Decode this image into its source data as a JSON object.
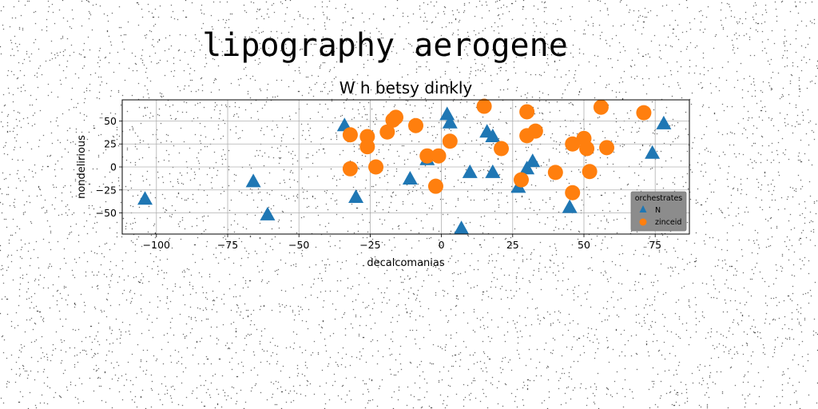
{
  "chart_data": {
    "type": "scatter",
    "suptitle": "lipography aerogene",
    "title": "W h betsy dinkly",
    "xlabel": "decalcomanias",
    "ylabel": "nondelirious",
    "xlim": [
      -112,
      87
    ],
    "ylim": [
      -73,
      73
    ],
    "xticks": [
      -100,
      -75,
      -50,
      -25,
      0,
      25,
      50,
      75
    ],
    "xtick_labels": [
      "−100",
      "−75",
      "−50",
      "−25",
      "0",
      "25",
      "50",
      "75"
    ],
    "yticks": [
      50,
      25,
      0,
      -25,
      -50
    ],
    "ytick_labels": [
      "50",
      "25",
      "0",
      "−25",
      "−50"
    ],
    "grid": true,
    "legend": {
      "title": "orchestrates",
      "placement": "lower-right"
    },
    "series": [
      {
        "name": "N",
        "marker": "triangle",
        "color": "#1f77b4",
        "points": [
          [
            -104,
            -35
          ],
          [
            -66,
            -16
          ],
          [
            -61,
            -52
          ],
          [
            -34,
            45
          ],
          [
            -30,
            -33
          ],
          [
            -11,
            -13
          ],
          [
            -5,
            8
          ],
          [
            2,
            57
          ],
          [
            3,
            48
          ],
          [
            7,
            -67
          ],
          [
            10,
            -6
          ],
          [
            16,
            38
          ],
          [
            18,
            33
          ],
          [
            18,
            -6
          ],
          [
            27,
            -22
          ],
          [
            30,
            -2
          ],
          [
            32,
            6
          ],
          [
            45,
            -44
          ],
          [
            74,
            15
          ],
          [
            78,
            47
          ]
        ]
      },
      {
        "name": "zinceid",
        "marker": "circle",
        "color": "#ff7f0e",
        "points": [
          [
            -32,
            35
          ],
          [
            -32,
            -2
          ],
          [
            -26,
            33
          ],
          [
            -26,
            22
          ],
          [
            -23,
            0
          ],
          [
            -19,
            38
          ],
          [
            -17,
            51
          ],
          [
            -16,
            54
          ],
          [
            -9,
            45
          ],
          [
            -5,
            12
          ],
          [
            -2,
            -21
          ],
          [
            -1,
            12
          ],
          [
            3,
            28
          ],
          [
            15,
            66
          ],
          [
            21,
            20
          ],
          [
            28,
            -14
          ],
          [
            30,
            34
          ],
          [
            30,
            60
          ],
          [
            33,
            39
          ],
          [
            40,
            -6
          ],
          [
            46,
            -28
          ],
          [
            46,
            25
          ],
          [
            50,
            31
          ],
          [
            51,
            20
          ],
          [
            52,
            -5
          ],
          [
            56,
            65
          ],
          [
            58,
            21
          ],
          [
            71,
            59
          ]
        ]
      }
    ]
  }
}
